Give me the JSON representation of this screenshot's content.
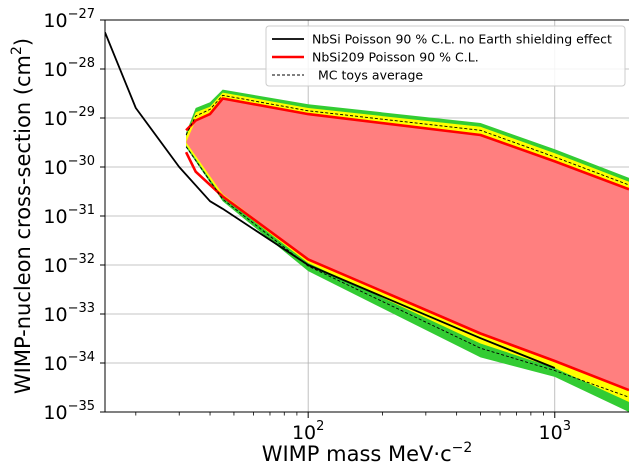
{
  "chart_data": {
    "type": "area",
    "xlabel": "WIMP mass MeV·c",
    "xlabel_exponent": "−2",
    "ylabel": "WIMP-nucleon cross-section (cm",
    "ylabel_unit_exponent": "2",
    "ylabel_close": ")",
    "x_scale": "log",
    "y_scale": "log",
    "xlim": [
      15.0,
      2000.0
    ],
    "ylim": [
      1e-35,
      1e-27
    ],
    "grid": true,
    "legend_position": "top-right",
    "x_ticks": [
      {
        "value": 100,
        "base": "10",
        "exp": "2"
      },
      {
        "value": 1000,
        "base": "10",
        "exp": "3"
      }
    ],
    "y_ticks": [
      {
        "value": 1e-27,
        "base": "10",
        "exp": "−27"
      },
      {
        "value": 1e-28,
        "base": "10",
        "exp": "−28"
      },
      {
        "value": 1e-29,
        "base": "10",
        "exp": "−29"
      },
      {
        "value": 1e-30,
        "base": "10",
        "exp": "−30"
      },
      {
        "value": 1e-31,
        "base": "10",
        "exp": "−31"
      },
      {
        "value": 1e-32,
        "base": "10",
        "exp": "−32"
      },
      {
        "value": 1e-33,
        "base": "10",
        "exp": "−33"
      },
      {
        "value": 1e-34,
        "base": "10",
        "exp": "−34"
      },
      {
        "value": 1e-35,
        "base": "10",
        "exp": "−35"
      }
    ],
    "legend": [
      {
        "label": "NbSi Poisson 90 % C.L. no Earth shielding effect",
        "color": "#000000",
        "style": "solid"
      },
      {
        "label": "NbSi209 Poisson 90 % C.L.",
        "color": "#ff0000",
        "style": "solid"
      },
      {
        "label": "MC toys average",
        "color": "#000000",
        "style": "dashed"
      }
    ],
    "bands": {
      "green_2sigma": {
        "color": "#33cc33",
        "upper": [
          [
            32,
            5e-30
          ],
          [
            35,
            1.6e-29
          ],
          [
            40,
            2.1e-29
          ],
          [
            45,
            3.8e-29
          ],
          [
            100,
            1.9e-29
          ],
          [
            500,
            7.9e-30
          ],
          [
            1000,
            2.3e-30
          ],
          [
            2000,
            6e-31
          ]
        ],
        "lower": [
          [
            32,
            2.5e-30
          ],
          [
            45,
            2e-31
          ],
          [
            100,
            7.5e-33
          ],
          [
            500,
            1.3e-34
          ],
          [
            1000,
            5.2e-35
          ],
          [
            2000,
            1e-35
          ]
        ]
      },
      "yellow_1sigma": {
        "color": "#ffff00",
        "upper": [
          [
            32,
            4.2e-30
          ],
          [
            35,
            1.3e-29
          ],
          [
            40,
            1.7e-29
          ],
          [
            45,
            3.3e-29
          ],
          [
            100,
            1.6e-29
          ],
          [
            500,
            6.6e-30
          ],
          [
            1000,
            1.9e-30
          ],
          [
            2000,
            5e-31
          ]
        ],
        "lower": [
          [
            32,
            2.8e-30
          ],
          [
            45,
            2.4e-31
          ],
          [
            100,
            1.1e-32
          ],
          [
            500,
            2.5e-34
          ],
          [
            1000,
            7.9e-35
          ],
          [
            2000,
            1.6e-35
          ]
        ]
      },
      "red_excluded": {
        "color": "#ff7f7f",
        "upper": [
          [
            32,
            3.2e-30
          ],
          [
            35,
            8.9e-30
          ],
          [
            40,
            1.2e-29
          ],
          [
            45,
            2.5e-29
          ],
          [
            100,
            1.2e-29
          ],
          [
            500,
            4.5e-30
          ],
          [
            1000,
            1.3e-30
          ],
          [
            2000,
            3.5e-31
          ]
        ],
        "lower": [
          [
            32,
            3.2e-30
          ],
          [
            45,
            2.8e-31
          ],
          [
            100,
            1.3e-32
          ],
          [
            500,
            4e-34
          ],
          [
            1000,
            1.1e-34
          ],
          [
            2000,
            2.8e-35
          ]
        ]
      }
    },
    "series": [
      {
        "name": "NbSi Poisson 90 % C.L. no Earth shielding effect",
        "color": "#000000",
        "style": "solid",
        "points": [
          [
            15,
            5.6e-28
          ],
          [
            20,
            1.6e-29
          ],
          [
            30,
            1e-30
          ],
          [
            40,
            2e-31
          ],
          [
            45,
            1.4e-31
          ],
          [
            100,
            1e-32
          ],
          [
            500,
            3.2e-34
          ],
          [
            1000,
            7.9e-35
          ]
        ]
      },
      {
        "name": "NbSi209 Poisson 90 % C.L.",
        "color": "#ff0000",
        "style": "solid",
        "segments": [
          [
            [
              32,
              5.6e-30
            ],
            [
              35,
              8.9e-30
            ],
            [
              40,
              1.2e-29
            ],
            [
              45,
              2.5e-29
            ],
            [
              100,
              1.2e-29
            ],
            [
              500,
              4.5e-30
            ],
            [
              1000,
              1.3e-30
            ],
            [
              2000,
              3.5e-31
            ]
          ],
          [
            [
              32,
              2e-30
            ],
            [
              35,
              8e-31
            ],
            [
              45,
              2.5e-31
            ],
            [
              100,
              1.3e-32
            ],
            [
              500,
              4e-34
            ],
            [
              1000,
              1.1e-34
            ],
            [
              2000,
              2.8e-35
            ]
          ]
        ]
      },
      {
        "name": "MC toys average",
        "color": "#000000",
        "style": "dashed",
        "segments": [
          [
            [
              32,
              4.5e-30
            ],
            [
              35,
              1.1e-29
            ],
            [
              40,
              1.5e-29
            ],
            [
              45,
              2.9e-29
            ],
            [
              100,
              1.4e-29
            ],
            [
              500,
              5.6e-30
            ],
            [
              1000,
              1.6e-30
            ],
            [
              2000,
              4.3e-31
            ]
          ],
          [
            [
              32,
              2.6e-30
            ],
            [
              45,
              2.2e-31
            ],
            [
              100,
              9.5e-33
            ],
            [
              500,
              2e-34
            ],
            [
              1000,
              7e-35
            ],
            [
              2000,
              2e-35
            ]
          ]
        ]
      }
    ]
  }
}
